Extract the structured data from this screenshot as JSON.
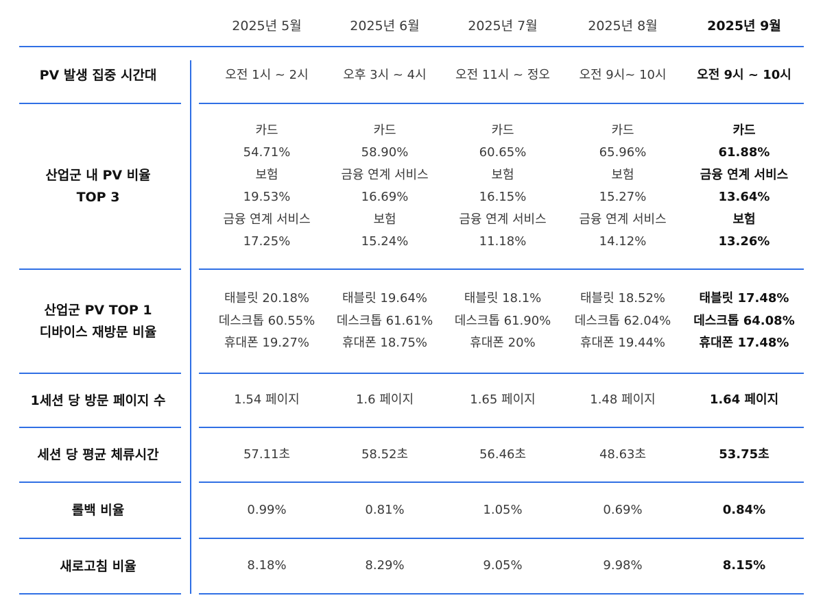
{
  "columns": [
    "2025년 5월",
    "2025년 6월",
    "2025년 7월",
    "2025년 8월",
    "2025년 9월"
  ],
  "rows": [
    {
      "label": [
        "PV 발생 집중 시간대"
      ],
      "cells": [
        [
          "오전 1시 ~ 2시"
        ],
        [
          "오후 3시 ~ 4시"
        ],
        [
          "오전 11시 ~ 정오"
        ],
        [
          "오전 9시~ 10시"
        ],
        [
          "오전 9시 ~ 10시"
        ]
      ]
    },
    {
      "label": [
        "산업군 내 PV 비율",
        "TOP 3"
      ],
      "cells": [
        [
          "카드",
          "54.71%",
          "보험",
          "19.53%",
          "금융 연계 서비스",
          "17.25%"
        ],
        [
          "카드",
          "58.90%",
          "금융 연계 서비스",
          "16.69%",
          "보험",
          "15.24%"
        ],
        [
          "카드",
          "60.65%",
          "보험",
          "16.15%",
          "금융 연계 서비스",
          "11.18%"
        ],
        [
          "카드",
          "65.96%",
          "보험",
          "15.27%",
          "금융 연계 서비스",
          "14.12%"
        ],
        [
          "카드",
          "61.88%",
          "금융 연계 서비스",
          "13.64%",
          "보험",
          "13.26%"
        ]
      ]
    },
    {
      "label": [
        "산업군 PV TOP 1",
        "디바이스 재방문 비율"
      ],
      "cells": [
        [
          "태블릿 20.18%",
          "데스크톱 60.55%",
          "휴대폰 19.27%"
        ],
        [
          "태블릿 19.64%",
          "데스크톱 61.61%",
          "휴대폰 18.75%"
        ],
        [
          "태블릿 18.1%",
          "데스크톱 61.90%",
          "휴대폰 20%"
        ],
        [
          "태블릿 18.52%",
          "데스크톱 62.04%",
          "휴대폰 19.44%"
        ],
        [
          "태블릿 17.48%",
          "데스크톱 64.08%",
          "휴대폰 17.48%"
        ]
      ]
    },
    {
      "label": [
        "1세션 당 방문 페이지 수"
      ],
      "cells": [
        [
          "1.54 페이지"
        ],
        [
          "1.6 페이지"
        ],
        [
          "1.65 페이지"
        ],
        [
          "1.48 페이지"
        ],
        [
          "1.64 페이지"
        ]
      ]
    },
    {
      "label": [
        "세션 당 평균 체류시간"
      ],
      "cells": [
        [
          "57.11초"
        ],
        [
          "58.52초"
        ],
        [
          "56.46초"
        ],
        [
          "48.63초"
        ],
        [
          "53.75초"
        ]
      ]
    },
    {
      "label": [
        "롤백 비율"
      ],
      "cells": [
        [
          "0.99%"
        ],
        [
          "0.81%"
        ],
        [
          "1.05%"
        ],
        [
          "0.69%"
        ],
        [
          "0.84%"
        ]
      ]
    },
    {
      "label": [
        "새로고침 비율"
      ],
      "cells": [
        [
          "8.18%"
        ],
        [
          "8.29%"
        ],
        [
          "9.05%"
        ],
        [
          "9.98%"
        ],
        [
          "8.15%"
        ]
      ]
    }
  ]
}
